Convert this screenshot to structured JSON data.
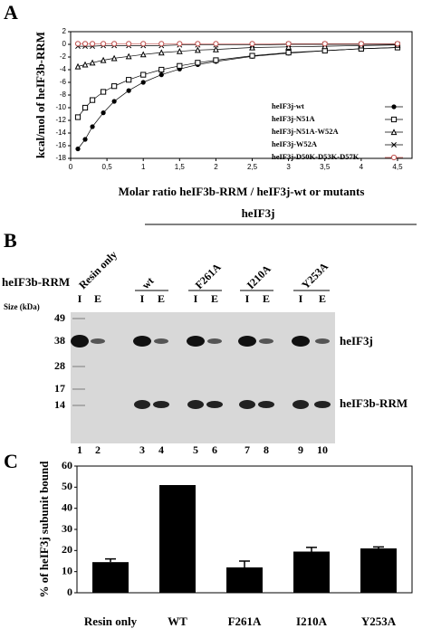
{
  "panels": [
    "A",
    "B",
    "C"
  ],
  "chart_data": [
    {
      "type": "line",
      "ylabel": "kcal/mol of heIF3b-RRM",
      "xlabel": "Molar ratio heIF3b-RRM / heIF3j-wt or mutants",
      "x": [
        0.1,
        0.2,
        0.3,
        0.45,
        0.6,
        0.8,
        1.0,
        1.25,
        1.5,
        1.75,
        2.0,
        2.5,
        3.0,
        3.5,
        4.0,
        4.5
      ],
      "series": [
        {
          "name": "heIF3j-wt",
          "color": "#000000",
          "marker": "circle-filled",
          "values": [
            -16.5,
            -15,
            -13,
            -10.8,
            -9,
            -7.3,
            -6,
            -4.8,
            -3.9,
            -3.2,
            -2.7,
            -1.9,
            -1.4,
            -1,
            -0.7,
            -0.5
          ]
        },
        {
          "name": "heIF3j-N51A",
          "color": "#000000",
          "marker": "square-open",
          "values": [
            -11.5,
            -10,
            -8.8,
            -7.5,
            -6.6,
            -5.6,
            -4.8,
            -4,
            -3.4,
            -2.9,
            -2.5,
            -1.8,
            -1.3,
            -1,
            -0.7,
            -0.5
          ]
        },
        {
          "name": "heIF3j-N51A-W52A",
          "color": "#000000",
          "marker": "triangle-open",
          "values": [
            -3.5,
            -3.2,
            -2.9,
            -2.5,
            -2.2,
            -1.9,
            -1.6,
            -1.3,
            -1.1,
            -0.9,
            -0.8,
            -0.5,
            -0.4,
            -0.3,
            -0.2,
            -0.1
          ]
        },
        {
          "name": "heIF3j-W52A",
          "color": "#000000",
          "marker": "x",
          "values": [
            -0.3,
            -0.3,
            -0.3,
            -0.2,
            -0.2,
            -0.2,
            -0.2,
            -0.2,
            -0.1,
            -0.1,
            -0.1,
            -0.1,
            0,
            0,
            0,
            0
          ]
        },
        {
          "name": "heIF3j-D50K-D53K-D57K",
          "color": "#c0504d",
          "marker": "circle-open",
          "values": [
            0.1,
            0.1,
            0.1,
            0.1,
            0.1,
            0.1,
            0.1,
            0.1,
            0.1,
            0.1,
            0.1,
            0.1,
            0.1,
            0.1,
            0.1,
            0.1
          ]
        }
      ],
      "xlim": [
        0,
        4.7
      ],
      "xticks": [
        0,
        {
          "value": 0.5,
          "label": "0,5"
        },
        1,
        {
          "value": 1.5,
          "label": "1,5"
        },
        2,
        {
          "value": 2.5,
          "label": "2,5"
        },
        3,
        {
          "value": 3.5,
          "label": "3,5"
        },
        4,
        {
          "value": 4.5,
          "label": "4,5"
        }
      ],
      "ylim": [
        -18,
        2
      ],
      "yticks": [
        2,
        0,
        -2,
        -4,
        -6,
        -8,
        -10,
        -12,
        -14,
        -16,
        -18
      ],
      "legend": "lower right"
    },
    {
      "type": "bar",
      "ylabel": "% of heIF3j subunit bound",
      "categories": [
        "Resin only",
        "WT",
        "F261A",
        "I210A",
        "Y253A"
      ],
      "values": [
        14.5,
        51,
        12,
        19.5,
        21
      ],
      "errors": [
        1.5,
        null,
        3,
        2,
        0.7
      ],
      "color": "#000000",
      "ylim": [
        0,
        60
      ],
      "yticks": [
        0,
        10,
        20,
        30,
        40,
        50,
        60
      ]
    }
  ],
  "gel": {
    "title": "heIF3j",
    "construct_label": "heIF3b-RRM",
    "groups": [
      "Resin only",
      "wt",
      "F261A",
      "I210A",
      "Y253A"
    ],
    "lane_types": [
      "I",
      "E",
      "I",
      "E",
      "I",
      "E",
      "I",
      "E",
      "I",
      "E"
    ],
    "size_label": "Size (kDa)",
    "sizes": [
      49,
      38,
      28,
      17,
      14
    ],
    "band_labels": [
      "heIF3j",
      "heIF3b-RRM"
    ],
    "lanes": [
      1,
      2,
      3,
      4,
      5,
      6,
      7,
      8,
      9,
      10
    ]
  }
}
